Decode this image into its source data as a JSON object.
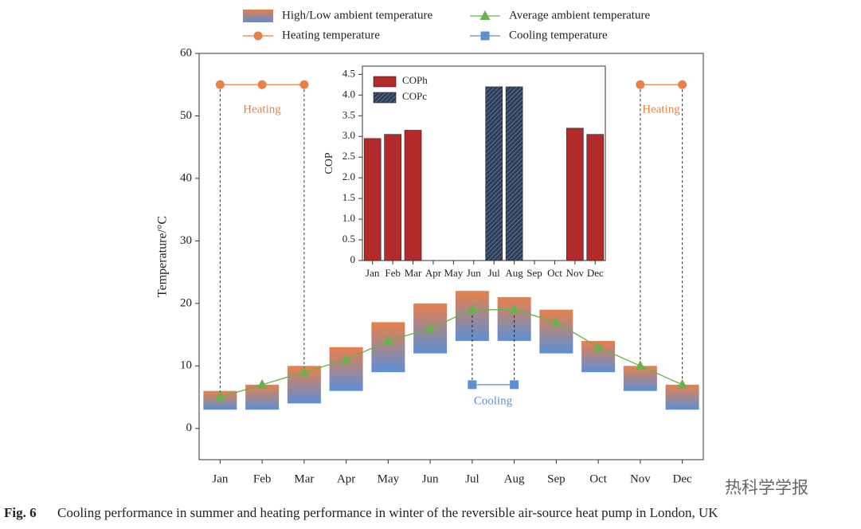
{
  "chart_data": [
    {
      "type": "range-line",
      "ylabel": "Temperature/°C",
      "categories": [
        "Jan",
        "Feb",
        "Mar",
        "Apr",
        "May",
        "Jun",
        "Jul",
        "Aug",
        "Sep",
        "Oct",
        "Nov",
        "Dec"
      ],
      "ylim": [
        -5,
        60
      ],
      "yticks": [
        0,
        10,
        20,
        30,
        40,
        50,
        60
      ],
      "series": [
        {
          "name": "High/Low ambient temperature",
          "kind": "range",
          "color": [
            "#e8804a",
            "#5b8fd6"
          ],
          "high": [
            6,
            7,
            10,
            13,
            17,
            20,
            22,
            21,
            19,
            14,
            10,
            7
          ],
          "low": [
            3,
            3,
            4,
            6,
            9,
            12,
            14,
            14,
            12,
            9,
            6,
            3
          ]
        },
        {
          "name": "Average ambient temperature",
          "kind": "line",
          "marker": "triangle",
          "color": "#6ab04c",
          "values": [
            5,
            7,
            9,
            11,
            14,
            16,
            19,
            19,
            17,
            13,
            10,
            7
          ]
        },
        {
          "name": "Heating temperature",
          "kind": "line",
          "marker": "circle",
          "color": "#e8804a",
          "values": [
            55,
            55,
            55,
            null,
            null,
            null,
            null,
            null,
            null,
            null,
            55,
            55
          ]
        },
        {
          "name": "Cooling temperature",
          "kind": "line",
          "marker": "square",
          "color": "#5b8fd6",
          "values": [
            null,
            null,
            null,
            null,
            null,
            null,
            7,
            7,
            null,
            null,
            null,
            null
          ]
        }
      ],
      "annotations": [
        "Heating",
        "Heating",
        "Cooling"
      ]
    },
    {
      "type": "bar",
      "ylabel": "COP",
      "categories": [
        "Jan",
        "Feb",
        "Mar",
        "Apr",
        "May",
        "Jun",
        "Jul",
        "Aug",
        "Sep",
        "Oct",
        "Nov",
        "Dec"
      ],
      "ylim": [
        0,
        4.7
      ],
      "yticks": [
        0,
        0.5,
        {
          "value": 1,
          "label": "1.0"
        },
        1.5,
        {
          "value": 2,
          "label": "2.0"
        },
        2.5,
        {
          "value": 3,
          "label": "3.0"
        },
        3.5,
        {
          "value": 4,
          "label": "4.0"
        },
        4.5
      ],
      "series": [
        {
          "name": "COPh",
          "color": "#b22a2a",
          "values": [
            2.95,
            3.05,
            3.15,
            null,
            null,
            null,
            null,
            null,
            null,
            null,
            3.2,
            3.05
          ]
        },
        {
          "name": "COPc",
          "color": "#2c3e5a",
          "hatch": true,
          "values": [
            null,
            null,
            null,
            null,
            null,
            null,
            4.2,
            4.2,
            null,
            null,
            null,
            null
          ]
        }
      ]
    }
  ],
  "caption": {
    "label": "Fig. 6",
    "text": "Cooling performance in summer and heating performance in winter of the reversible air-source heat pump in London, UK"
  },
  "watermark": "热科学学报"
}
